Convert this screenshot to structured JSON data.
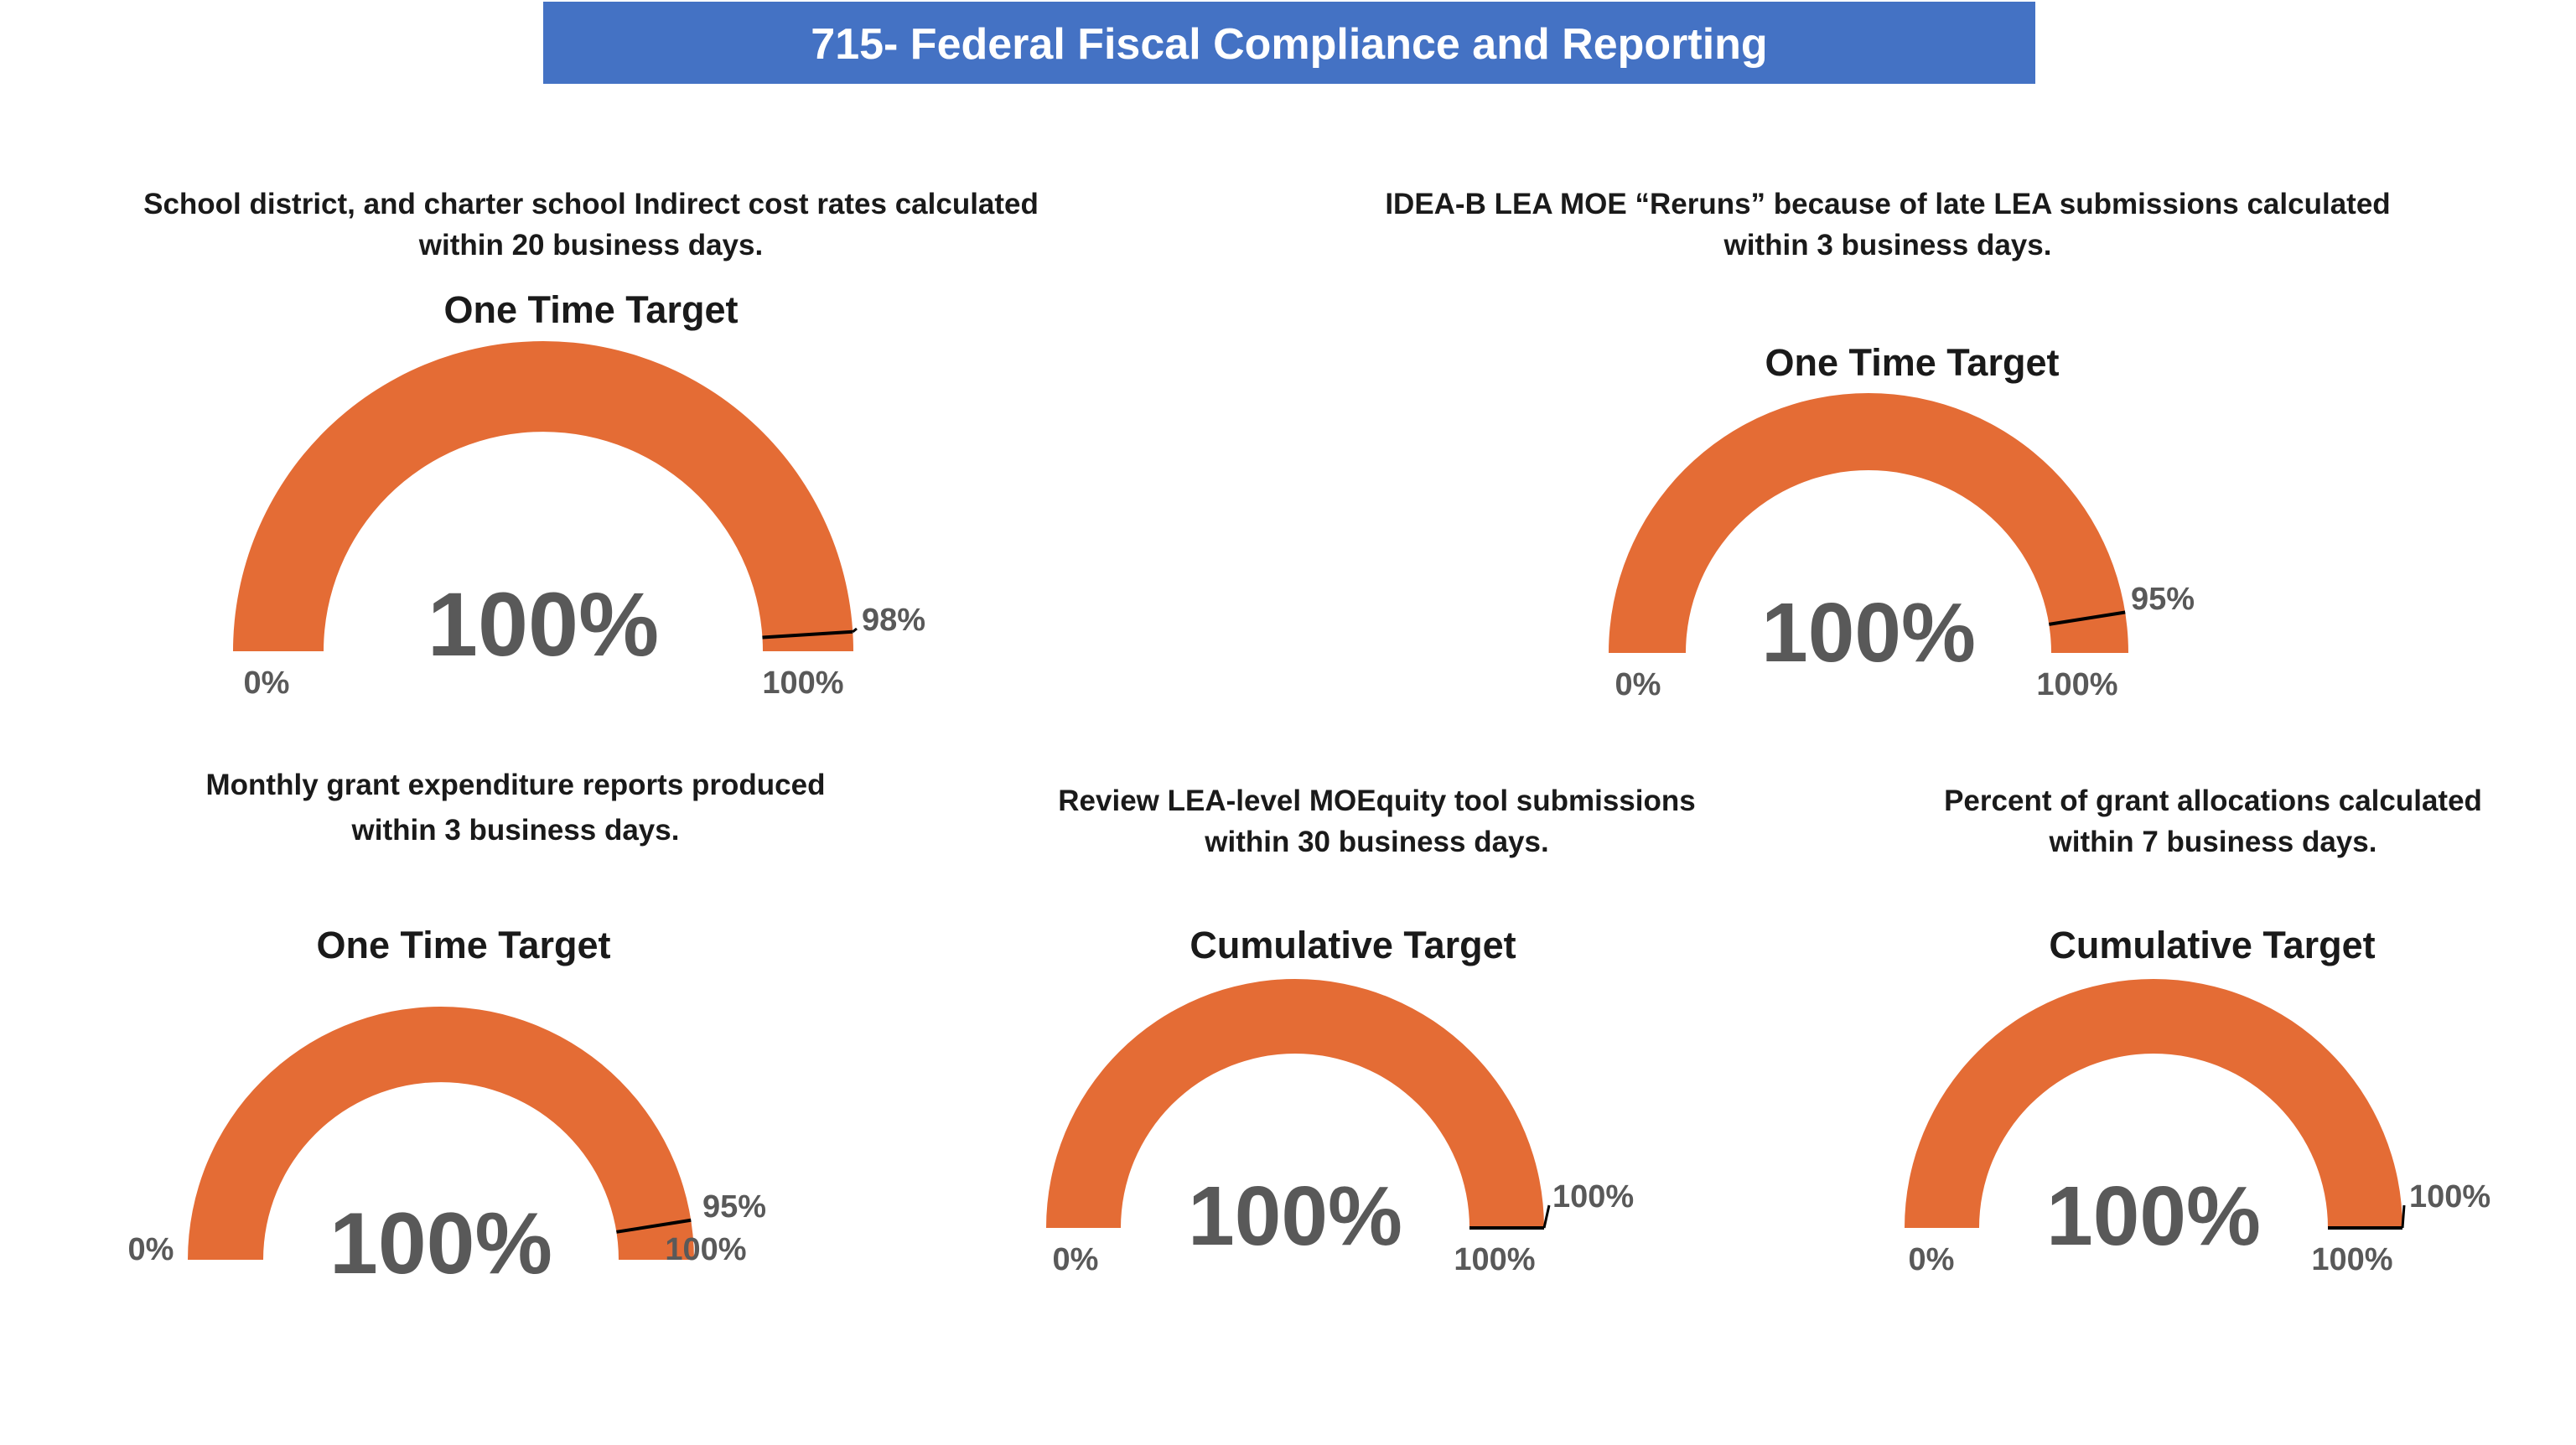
{
  "header": {
    "title": "715- Federal Fiscal Compliance and Reporting"
  },
  "colors": {
    "header_bg": "#4472c4",
    "header_text": "#ffffff",
    "gauge_fill": "#e46c35",
    "gauge_value_text": "#595959",
    "marker": "#000000"
  },
  "kpis": [
    {
      "title_lines": [
        "School district, and charter school Indirect cost rates calculated",
        "within 20 business days."
      ],
      "target_label": "One Time Target"
    },
    {
      "title_lines": [
        "IDEA-B LEA MOE “Reruns” because of late LEA submissions calculated",
        "within 3 business days."
      ],
      "target_label": "One Time Target"
    },
    {
      "title_lines": [
        "Monthly grant expenditure reports produced",
        "within 3 business days."
      ],
      "target_label": "One Time Target"
    },
    {
      "title_lines": [
        "Review LEA-level MOEquity tool submissions",
        "within 30 business days."
      ],
      "target_label": "Cumulative Target"
    },
    {
      "title_lines": [
        "Percent of grant allocations calculated",
        "within 7 business days."
      ],
      "target_label": "Cumulative Target"
    }
  ],
  "chart_data": [
    {
      "type": "gauge",
      "value": 100,
      "value_label": "100%",
      "target": 98,
      "target_label": "98%",
      "min": 0,
      "max": 100,
      "min_label": "0%",
      "max_label": "100%"
    },
    {
      "type": "gauge",
      "value": 100,
      "value_label": "100%",
      "target": 95,
      "target_label": "95%",
      "min": 0,
      "max": 100,
      "min_label": "0%",
      "max_label": "100%"
    },
    {
      "type": "gauge",
      "value": 100,
      "value_label": "100%",
      "target": 95,
      "target_label": "95%",
      "min": 0,
      "max": 100,
      "min_label": "0%",
      "max_label": "100%"
    },
    {
      "type": "gauge",
      "value": 100,
      "value_label": "100%",
      "target": 100,
      "target_label": "100%",
      "min": 0,
      "max": 100,
      "min_label": "0%",
      "max_label": "100%"
    },
    {
      "type": "gauge",
      "value": 100,
      "value_label": "100%",
      "target": 100,
      "target_label": "100%",
      "min": 0,
      "max": 100,
      "min_label": "0%",
      "max_label": "100%"
    }
  ]
}
